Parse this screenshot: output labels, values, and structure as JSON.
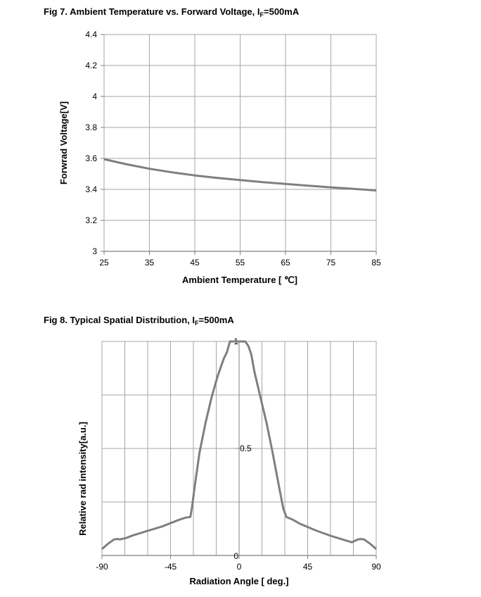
{
  "figures": [
    {
      "title_main": "Fig 7. Ambient Temperature vs. Forward Voltage, I",
      "title_sub": "F",
      "title_tail": "=500mA"
    },
    {
      "title_main": "Fig 8. Typical Spatial Distribution, I",
      "title_sub": "F",
      "title_tail": "=500mA"
    }
  ],
  "chart_data": [
    {
      "type": "line",
      "title": "Fig 7. Ambient Temperature vs. Forward Voltage, IF=500mA",
      "xlabel": "Ambient Temperature [ ℃]",
      "ylabel": "Forwrad Voltage[V]",
      "xlim": [
        25,
        85
      ],
      "ylim": [
        3,
        4.4
      ],
      "xticks": [
        25,
        35,
        45,
        55,
        65,
        75,
        85
      ],
      "yticks": [
        3,
        3.2,
        3.4,
        3.6,
        3.8,
        4,
        4.2,
        4.4
      ],
      "ytick_labels": [
        "3",
        "3.2",
        "3.4",
        "3.6",
        "3.8",
        "4",
        "4.2",
        "4.4"
      ],
      "grid": true,
      "line_color": "#7f7f7f",
      "series": [
        {
          "x": [
            25,
            30,
            35,
            40,
            45,
            50,
            55,
            60,
            65,
            70,
            75,
            80,
            85
          ],
          "y": [
            3.595,
            3.562,
            3.533,
            3.51,
            3.49,
            3.474,
            3.46,
            3.447,
            3.435,
            3.424,
            3.413,
            3.403,
            3.393
          ]
        }
      ]
    },
    {
      "type": "line",
      "title": "Fig 8. Typical Spatial Distribution, IF=500mA",
      "xlabel": "Radiation Angle  [ deg.]",
      "ylabel": "Relative rad intensity[a.u.]",
      "xlim": [
        -90,
        90
      ],
      "ylim": [
        0,
        1
      ],
      "xticks": [
        -90,
        -45,
        0,
        45,
        90
      ],
      "yticks": [
        0,
        0.5,
        1
      ],
      "ytick_labels": [
        "0",
        "0.5",
        "1"
      ],
      "grid": true,
      "line_color": "#7f7f7f",
      "series": [
        {
          "x": [
            -90,
            -86,
            -82,
            -80,
            -78,
            -74,
            -70,
            -60,
            -50,
            -40,
            -35,
            -32,
            -31,
            -29,
            -26,
            -22,
            -18,
            -14,
            -10,
            -8,
            -6,
            -4,
            -2,
            0,
            2,
            4,
            6,
            8,
            10,
            14,
            18,
            22,
            26,
            29,
            31,
            32,
            35,
            40,
            50,
            60,
            70,
            74,
            78,
            80,
            82,
            86,
            90
          ],
          "y": [
            0.03,
            0.055,
            0.075,
            0.077,
            0.075,
            0.082,
            0.093,
            0.115,
            0.137,
            0.165,
            0.177,
            0.18,
            0.22,
            0.33,
            0.48,
            0.62,
            0.74,
            0.84,
            0.92,
            0.95,
            1.0,
            1.0,
            1.0,
            1.0,
            1.0,
            1.0,
            0.98,
            0.94,
            0.86,
            0.74,
            0.62,
            0.48,
            0.33,
            0.22,
            0.18,
            0.177,
            0.168,
            0.148,
            0.118,
            0.092,
            0.07,
            0.062,
            0.075,
            0.077,
            0.075,
            0.055,
            0.03
          ]
        }
      ]
    }
  ]
}
